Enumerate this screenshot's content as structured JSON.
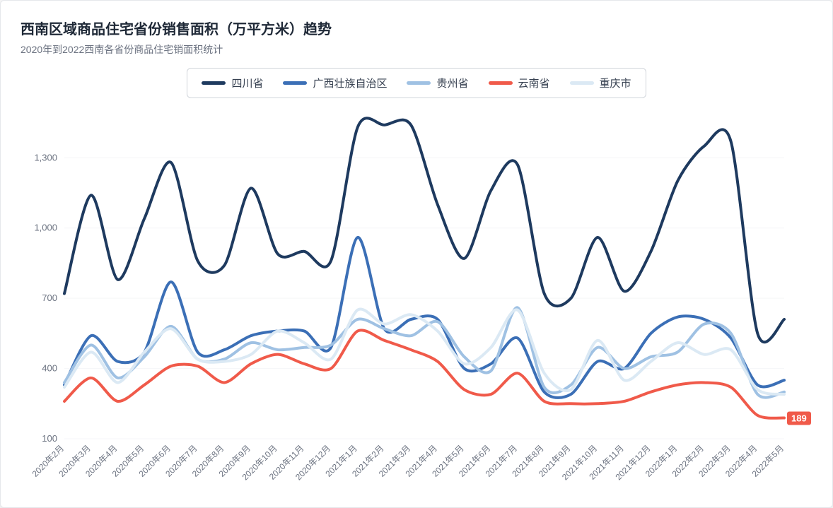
{
  "title": "西南区域商品住宅省份销售面积（万平方米）趋势",
  "subtitle": "2020年到2022西南各省份商品住宅销面积统计",
  "title_fontsize": 20,
  "subtitle_fontsize": 14,
  "card_bg": "#ffffff",
  "card_border": "#e5e7eb",
  "grid_color": "#f5f6f8",
  "axis_text_color": "#6b7280",
  "ylim": [
    100,
    1500
  ],
  "yticks": [
    100,
    400,
    700,
    1000,
    1300
  ],
  "x_labels": [
    "2020年2月",
    "2020年3月",
    "2020年4月",
    "2020年5月",
    "2020年6月",
    "2020年7月",
    "2020年8月",
    "2020年9月",
    "2020年10月",
    "2020年11月",
    "2020年12月",
    "2021年1月",
    "2021年2月",
    "2021年3月",
    "2021年4月",
    "2021年5月",
    "2021年6月",
    "2021年7月",
    "2021年8月",
    "2021年9月",
    "2021年10月",
    "2021年11月",
    "2021年12月",
    "2022年1月",
    "2022年2月",
    "2022年3月",
    "2022年4月",
    "2022年5月"
  ],
  "line_width": 4,
  "smoothing": 0.85,
  "legend_border": "#d1d5db",
  "series": [
    {
      "name": "四川省",
      "color": "#1e3a5f",
      "data": [
        720,
        1140,
        780,
        1040,
        1280,
        860,
        840,
        1170,
        890,
        900,
        860,
        1430,
        1440,
        1440,
        1100,
        870,
        1160,
        1270,
        720,
        700,
        960,
        730,
        900,
        1200,
        1350,
        1370,
        550,
        610
      ]
    },
    {
      "name": "广西壮族自治区",
      "color": "#3b6fb6",
      "data": [
        330,
        540,
        430,
        470,
        770,
        470,
        480,
        540,
        560,
        560,
        490,
        960,
        570,
        610,
        610,
        400,
        420,
        530,
        300,
        290,
        430,
        400,
        550,
        620,
        610,
        530,
        330,
        350
      ]
    },
    {
      "name": "贵州省",
      "color": "#9fc1e3",
      "data": [
        340,
        500,
        360,
        450,
        580,
        440,
        440,
        510,
        480,
        490,
        500,
        610,
        570,
        540,
        600,
        450,
        390,
        660,
        320,
        330,
        490,
        400,
        450,
        470,
        590,
        550,
        290,
        300
      ]
    },
    {
      "name": "云南省",
      "color": "#f05a4a",
      "data": [
        260,
        360,
        260,
        330,
        410,
        410,
        340,
        420,
        460,
        420,
        400,
        560,
        520,
        480,
        430,
        310,
        290,
        380,
        260,
        250,
        250,
        260,
        300,
        330,
        340,
        320,
        200,
        189
      ]
    },
    {
      "name": "重庆市",
      "color": "#dbe9f4",
      "data": [
        320,
        470,
        340,
        470,
        570,
        440,
        430,
        460,
        560,
        510,
        440,
        650,
        590,
        630,
        560,
        420,
        490,
        650,
        380,
        310,
        520,
        350,
        430,
        510,
        460,
        480,
        310,
        290
      ]
    }
  ],
  "end_badge": {
    "series_index": 3,
    "text": "189",
    "bg": "#f05a4a",
    "color": "#ffffff"
  }
}
